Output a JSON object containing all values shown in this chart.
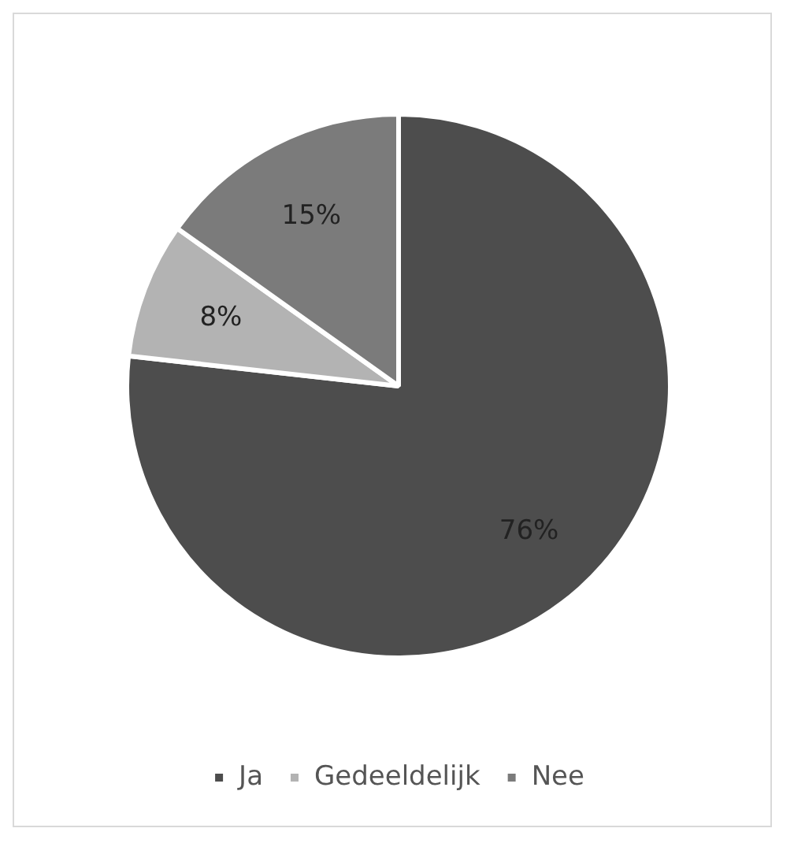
{
  "chart_data": {
    "type": "pie",
    "categories": [
      "Ja",
      "Gedeeldelijk",
      "Nee"
    ],
    "values": [
      76,
      8,
      15
    ],
    "colors": [
      "#4d4d4d",
      "#b3b3b3",
      "#7b7b7b"
    ],
    "value_labels": [
      "76%",
      "8%",
      "15%"
    ],
    "legend": "bottom"
  }
}
